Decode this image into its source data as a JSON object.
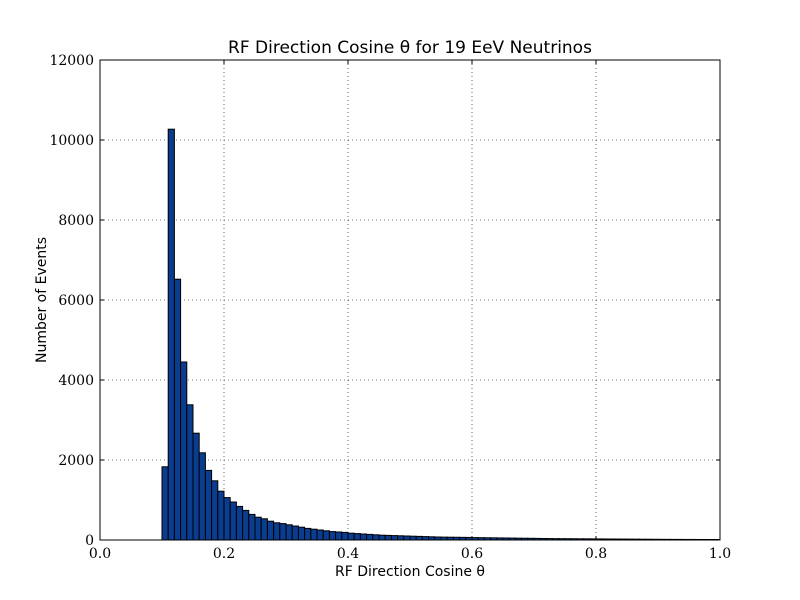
{
  "chart_data": {
    "type": "bar",
    "title": "RF Direction Cosine θ for 19 EeV Neutrinos",
    "xlabel": "RF Direction Cosine θ",
    "ylabel": "Number of Events",
    "xlim": [
      0.0,
      1.0
    ],
    "ylim": [
      0,
      12000
    ],
    "xticks": [
      "0.0",
      "0.2",
      "0.4",
      "0.6",
      "0.8",
      "1.0"
    ],
    "xtick_values": [
      0.0,
      0.2,
      0.4,
      0.6,
      0.8,
      1.0
    ],
    "yticks": [
      "0",
      "2000",
      "4000",
      "6000",
      "8000",
      "10000",
      "12000"
    ],
    "ytick_values": [
      0,
      2000,
      4000,
      6000,
      8000,
      10000,
      12000
    ],
    "grid": true,
    "bin_width": 0.01,
    "bin_edges_start": 0.1,
    "bar_color": "#0a3d8f",
    "values": [
      1830,
      10270,
      6520,
      4450,
      3380,
      2670,
      2180,
      1740,
      1480,
      1220,
      1060,
      950,
      840,
      740,
      640,
      570,
      530,
      470,
      430,
      410,
      380,
      350,
      320,
      290,
      270,
      250,
      230,
      210,
      200,
      190,
      170,
      160,
      150,
      140,
      130,
      120,
      115,
      110,
      105,
      100,
      95,
      90,
      85,
      80,
      75,
      72,
      70,
      68,
      66,
      64,
      60,
      58,
      56,
      54,
      52,
      50,
      48,
      46,
      44,
      42,
      40,
      38,
      36,
      34,
      33,
      32,
      31,
      30,
      29,
      28,
      27,
      26,
      25,
      24,
      23,
      22,
      21,
      20,
      19,
      18,
      17,
      16,
      15,
      15,
      14,
      14,
      13,
      13,
      12,
      12
    ]
  }
}
